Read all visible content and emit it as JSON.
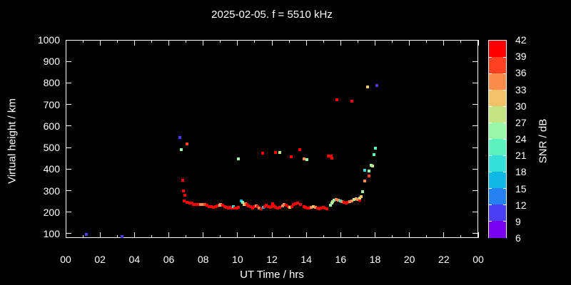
{
  "chart_data": {
    "type": "scatter",
    "title": "2025-02-05. f = 5510 kHz",
    "xlabel": "UT Time / hrs",
    "ylabel": "Virtual height / km",
    "colorbar_label": "SNR / dB",
    "xlim": [
      0,
      24
    ],
    "ylim": [
      80,
      1000
    ],
    "grid": false,
    "background_color": "#000000",
    "foreground_color": "#ffffff",
    "x_major_ticks": [
      {
        "t": 0,
        "label": "00"
      },
      {
        "t": 2,
        "label": "02"
      },
      {
        "t": 4,
        "label": "04"
      },
      {
        "t": 6,
        "label": "06"
      },
      {
        "t": 8,
        "label": "08"
      },
      {
        "t": 10,
        "label": "10"
      },
      {
        "t": 12,
        "label": "12"
      },
      {
        "t": 14,
        "label": "14"
      },
      {
        "t": 16,
        "label": "16"
      },
      {
        "t": 18,
        "label": "18"
      },
      {
        "t": 20,
        "label": "20"
      },
      {
        "t": 22,
        "label": "22"
      },
      {
        "t": 24,
        "label": "00"
      }
    ],
    "x_minor_ticks": [
      1,
      3,
      5,
      7,
      9,
      11,
      13,
      15,
      17,
      19,
      21,
      23
    ],
    "y_major_ticks": [
      100,
      200,
      300,
      400,
      500,
      600,
      700,
      800,
      900,
      1000
    ],
    "colorbar": {
      "min": 6,
      "max": 42,
      "step": 3,
      "tick_labels": [
        42,
        39,
        36,
        33,
        30,
        27,
        24,
        21,
        18,
        15,
        12,
        9,
        6
      ],
      "colors": [
        "#7a00f0",
        "#4a3ff2",
        "#2382f0",
        "#0fb9e6",
        "#35e0da",
        "#5cf2c0",
        "#98f7a8",
        "#c5e383",
        "#f2c269",
        "#fa8b4b",
        "#ff4122",
        "#ff0000"
      ]
    },
    "points_format": [
      "ut_hours",
      "virtual_height_km",
      "snr_db"
    ],
    "points": [
      [
        1.21,
        95,
        10
      ],
      [
        3.29,
        85,
        10
      ],
      [
        6.63,
        547,
        10
      ],
      [
        6.71,
        491,
        26
      ],
      [
        7.04,
        517,
        38
      ],
      [
        6.79,
        349,
        41
      ],
      [
        6.85,
        297,
        41
      ],
      [
        6.93,
        277,
        41
      ],
      [
        6.9,
        253,
        41
      ],
      [
        7.07,
        246,
        41
      ],
      [
        7.21,
        243,
        41
      ],
      [
        7.35,
        243,
        41
      ],
      [
        7.44,
        237,
        41
      ],
      [
        7.58,
        234,
        41
      ],
      [
        7.68,
        235,
        41
      ],
      [
        7.86,
        237,
        35
      ],
      [
        7.99,
        237,
        35
      ],
      [
        8.11,
        235,
        38
      ],
      [
        8.22,
        231,
        41
      ],
      [
        8.35,
        227,
        41
      ],
      [
        8.46,
        224,
        41
      ],
      [
        8.58,
        222,
        41
      ],
      [
        8.72,
        225,
        41
      ],
      [
        8.85,
        228,
        41
      ],
      [
        8.96,
        231,
        32
      ],
      [
        9.03,
        236,
        35
      ],
      [
        9.14,
        231,
        41
      ],
      [
        9.25,
        226,
        41
      ],
      [
        9.36,
        222,
        41
      ],
      [
        9.46,
        220,
        41
      ],
      [
        9.57,
        222,
        41
      ],
      [
        9.67,
        220,
        41
      ],
      [
        9.75,
        224,
        20
      ],
      [
        9.85,
        220,
        41
      ],
      [
        9.96,
        220,
        41
      ],
      [
        10.06,
        222,
        41
      ],
      [
        10.22,
        253,
        17
      ],
      [
        10.3,
        245,
        26
      ],
      [
        10.37,
        236,
        32
      ],
      [
        10.45,
        239,
        35
      ],
      [
        10.54,
        234,
        41
      ],
      [
        10.64,
        229,
        41
      ],
      [
        10.75,
        225,
        41
      ],
      [
        10.86,
        220,
        41
      ],
      [
        10.96,
        226,
        41
      ],
      [
        11.07,
        229,
        35
      ],
      [
        11.17,
        224,
        41
      ],
      [
        11.26,
        219,
        35
      ],
      [
        11.38,
        215,
        41
      ],
      [
        11.49,
        221,
        17
      ],
      [
        11.58,
        227,
        41
      ],
      [
        11.68,
        231,
        41
      ],
      [
        11.79,
        227,
        41
      ],
      [
        11.9,
        222,
        41
      ],
      [
        12.0,
        226,
        41
      ],
      [
        12.03,
        240,
        41
      ],
      [
        12.11,
        230,
        41
      ],
      [
        12.19,
        223,
        41
      ],
      [
        12.33,
        220,
        41
      ],
      [
        12.47,
        223,
        41
      ],
      [
        12.61,
        230,
        35
      ],
      [
        12.72,
        237,
        35
      ],
      [
        12.83,
        231,
        41
      ],
      [
        12.95,
        226,
        41
      ],
      [
        13.05,
        223,
        32
      ],
      [
        13.17,
        227,
        41
      ],
      [
        13.26,
        234,
        41
      ],
      [
        13.38,
        239,
        41
      ],
      [
        13.49,
        243,
        41
      ],
      [
        13.67,
        235,
        41
      ],
      [
        13.86,
        226,
        41
      ],
      [
        13.97,
        223,
        41
      ],
      [
        14.08,
        220,
        41
      ],
      [
        14.19,
        219,
        41
      ],
      [
        14.3,
        223,
        35
      ],
      [
        14.42,
        227,
        32
      ],
      [
        14.53,
        223,
        35
      ],
      [
        14.64,
        218,
        41
      ],
      [
        14.75,
        216,
        41
      ],
      [
        14.86,
        219,
        41
      ],
      [
        14.97,
        223,
        41
      ],
      [
        15.08,
        219,
        41
      ],
      [
        15.2,
        215,
        41
      ],
      [
        15.42,
        233,
        26
      ],
      [
        15.47,
        241,
        26
      ],
      [
        15.51,
        248,
        29
      ],
      [
        15.61,
        254,
        26
      ],
      [
        15.75,
        259,
        35
      ],
      [
        15.86,
        256,
        35
      ],
      [
        15.97,
        252,
        20
      ],
      [
        16.08,
        249,
        35
      ],
      [
        16.2,
        245,
        41
      ],
      [
        16.3,
        243,
        41
      ],
      [
        16.42,
        245,
        41
      ],
      [
        16.53,
        249,
        35
      ],
      [
        16.64,
        252,
        35
      ],
      [
        16.79,
        259,
        29
      ],
      [
        16.89,
        263,
        32
      ],
      [
        17.0,
        259,
        35
      ],
      [
        17.11,
        254,
        41
      ],
      [
        17.12,
        265,
        29
      ],
      [
        17.18,
        272,
        32
      ],
      [
        17.28,
        294,
        26
      ],
      [
        17.38,
        344,
        35
      ],
      [
        17.39,
        393,
        20
      ],
      [
        17.63,
        368,
        38
      ],
      [
        17.63,
        391,
        26
      ],
      [
        17.76,
        419,
        26
      ],
      [
        17.86,
        413,
        29
      ],
      [
        17.93,
        468,
        23
      ],
      [
        18.01,
        498,
        23
      ],
      [
        10.06,
        446,
        26
      ],
      [
        11.47,
        474,
        41
      ],
      [
        12.21,
        478,
        41
      ],
      [
        12.45,
        476,
        29
      ],
      [
        13.11,
        457,
        41
      ],
      [
        13.64,
        489,
        41
      ],
      [
        13.85,
        448,
        35
      ],
      [
        14.05,
        445,
        26
      ],
      [
        15.26,
        462,
        41
      ],
      [
        15.43,
        460,
        41
      ],
      [
        15.5,
        449,
        41
      ],
      [
        15.79,
        722,
        41
      ],
      [
        16.65,
        715,
        41
      ],
      [
        17.56,
        780,
        32
      ],
      [
        18.11,
        788,
        10
      ]
    ]
  }
}
